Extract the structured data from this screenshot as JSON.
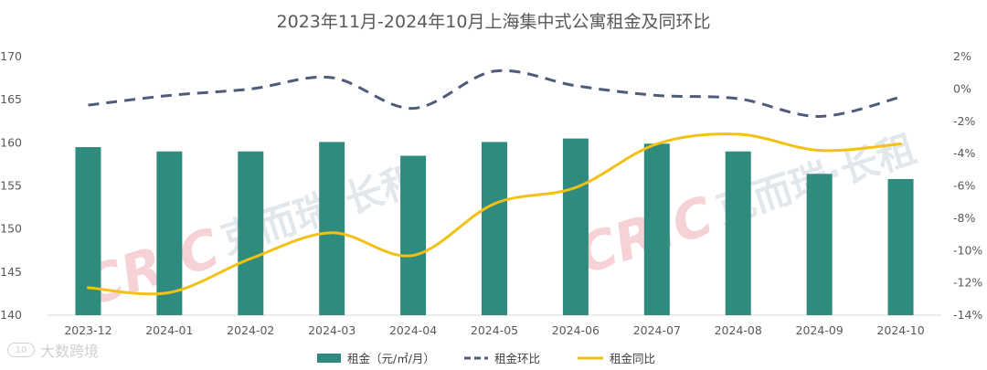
{
  "chart_data": {
    "type": "bar",
    "title": "2023年11月-2024年10月上海集中式公寓租金及同环比",
    "categories": [
      "2023-12",
      "2024-01",
      "2024-02",
      "2024-03",
      "2024-04",
      "2024-05",
      "2024-06",
      "2024-07",
      "2024-08",
      "2024-09",
      "2024-10"
    ],
    "y_left": {
      "min": 140,
      "max": 170,
      "step": 5,
      "ticks": [
        "140",
        "145",
        "150",
        "155",
        "160",
        "165",
        "170"
      ]
    },
    "y_right": {
      "min": -14,
      "max": 2,
      "step": 2,
      "ticks": [
        "-14%",
        "-12%",
        "-10%",
        "-8%",
        "-6%",
        "-4%",
        "-2%",
        "0%",
        "2%"
      ]
    },
    "series": [
      {
        "name": "租金（元/㎡/月）",
        "type": "bar",
        "axis": "left",
        "color": "#2E8B7E",
        "values": [
          159.5,
          159.0,
          159.0,
          160.1,
          158.5,
          160.1,
          160.5,
          159.9,
          159.0,
          156.4,
          155.8
        ]
      },
      {
        "name": "租金环比",
        "type": "line-dashed",
        "axis": "right",
        "color": "#4F5B7A",
        "values": [
          -1.0,
          -0.4,
          0.0,
          0.7,
          -1.2,
          1.1,
          0.2,
          -0.4,
          -0.6,
          -1.7,
          -0.5
        ]
      },
      {
        "name": "租金同比",
        "type": "line",
        "axis": "right",
        "color": "#F2C114",
        "values": [
          -12.3,
          -12.6,
          -10.5,
          -8.9,
          -10.3,
          -7.1,
          -6.1,
          -3.4,
          -2.8,
          -3.8,
          -3.4
        ]
      }
    ],
    "legend_position": "bottom",
    "grid": false
  },
  "watermark": {
    "en": "CRIC",
    "cn": "克而瑞·长租"
  },
  "footer": {
    "icon_text": "10",
    "label": "大数跨境"
  }
}
